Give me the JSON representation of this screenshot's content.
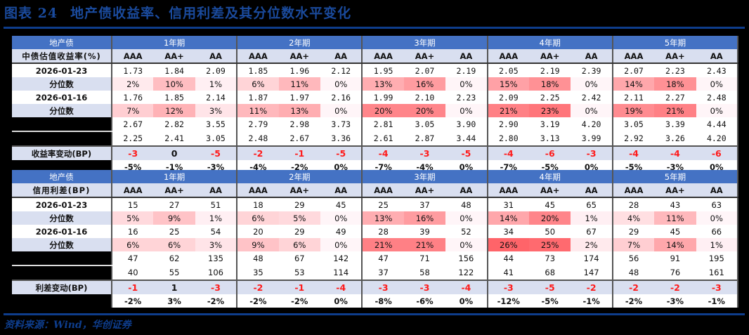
{
  "title": {
    "figure_no": "图表 24",
    "text": "地产债收益率、信用利差及其分位数水平变化"
  },
  "source": "资料来源：Wind，华创证券",
  "colors": {
    "header_blue": "#4472c4",
    "rule_blue": "#0e3d8c",
    "label_bg": "#d9dff0",
    "negative_red": "#ff1a1a"
  },
  "tables": [
    {
      "header": {
        "corner": "地产债",
        "periods": [
          "1年期",
          "2年期",
          "3年期",
          "4年期",
          "5年期"
        ]
      },
      "subheader": {
        "label": "中债估值收益率(%)",
        "ratings": [
          "AAA",
          "AA+",
          "AA",
          "AAA",
          "AA+",
          "AA",
          "AAA",
          "AA+",
          "AA",
          "AAA",
          "AA+",
          "AA",
          "AAA",
          "AA+",
          "AA"
        ]
      },
      "rows": [
        {
          "label": "2026-01-23",
          "type": "value",
          "values": [
            "1.73",
            "1.84",
            "2.09",
            "1.85",
            "1.96",
            "2.12",
            "1.95",
            "2.07",
            "2.19",
            "2.05",
            "2.19",
            "2.39",
            "2.07",
            "2.23",
            "2.43"
          ]
        },
        {
          "label": "分位数",
          "type": "pct",
          "values": [
            "2%",
            "10%",
            "1%",
            "6%",
            "11%",
            "0%",
            "13%",
            "16%",
            "0%",
            "15%",
            "18%",
            "0%",
            "14%",
            "18%",
            "0%"
          ]
        },
        {
          "label": "2026-01-16",
          "type": "value",
          "values": [
            "1.76",
            "1.85",
            "2.14",
            "1.87",
            "1.97",
            "2.16",
            "1.99",
            "2.10",
            "2.23",
            "2.09",
            "2.25",
            "2.42",
            "2.11",
            "2.27",
            "2.48"
          ]
        },
        {
          "label": "分位数",
          "type": "pct",
          "values": [
            "7%",
            "12%",
            "3%",
            "11%",
            "13%",
            "0%",
            "20%",
            "20%",
            "0%",
            "21%",
            "23%",
            "0%",
            "19%",
            "21%",
            "0%"
          ]
        },
        {
          "label": "",
          "type": "hidden",
          "values": [
            "2.67",
            "2.82",
            "3.55",
            "2.79",
            "2.98",
            "3.73",
            "2.81",
            "3.05",
            "3.90",
            "2.90",
            "3.19",
            "4.20",
            "3.05",
            "3.39",
            "4.44"
          ]
        },
        {
          "label": "",
          "type": "hidden",
          "values": [
            "2.25",
            "2.41",
            "3.05",
            "2.48",
            "2.67",
            "3.36",
            "2.61",
            "2.87",
            "3.44",
            "2.80",
            "3.13",
            "3.99",
            "2.92",
            "3.26",
            "4.20"
          ]
        },
        {
          "label": "收益率变动(BP)",
          "type": "change",
          "values": [
            "-3",
            "0",
            "-5",
            "-2",
            "-1",
            "-5",
            "-4",
            "-3",
            "-5",
            "-4",
            "-6",
            "-3",
            "-4",
            "-4",
            "-6"
          ]
        },
        {
          "label": "",
          "type": "change_pct",
          "values": [
            "-5%",
            "-1%",
            "-3%",
            "-4%",
            "-2%",
            "0%",
            "-7%",
            "-4%",
            "0%",
            "-7%",
            "-5%",
            "0%",
            "-5%",
            "-3%",
            "0%"
          ]
        }
      ]
    },
    {
      "header": {
        "corner": "地产债",
        "periods": [
          "1年期",
          "2年期",
          "3年期",
          "4年期",
          "5年期"
        ]
      },
      "subheader": {
        "label": "信用利差(BP)",
        "ratings": [
          "AAA",
          "AA+",
          "AA",
          "AAA",
          "AA+",
          "AA",
          "AAA",
          "AA+",
          "AA",
          "AAA",
          "AA+",
          "AA",
          "AAA",
          "AA+",
          "AA"
        ]
      },
      "rows": [
        {
          "label": "2026-01-23",
          "type": "value",
          "values": [
            "15",
            "27",
            "51",
            "18",
            "29",
            "45",
            "25",
            "37",
            "48",
            "31",
            "45",
            "65",
            "28",
            "43",
            "63"
          ]
        },
        {
          "label": "分位数",
          "type": "pct",
          "values": [
            "5%",
            "9%",
            "1%",
            "6%",
            "5%",
            "0%",
            "13%",
            "16%",
            "0%",
            "14%",
            "20%",
            "1%",
            "4%",
            "11%",
            "0%"
          ]
        },
        {
          "label": "2026-01-16",
          "type": "value",
          "values": [
            "16",
            "25",
            "54",
            "20",
            "29",
            "49",
            "28",
            "39",
            "52",
            "34",
            "50",
            "67",
            "29",
            "45",
            "66"
          ]
        },
        {
          "label": "分位数",
          "type": "pct",
          "values": [
            "6%",
            "6%",
            "3%",
            "9%",
            "6%",
            "0%",
            "21%",
            "21%",
            "0%",
            "26%",
            "25%",
            "2%",
            "7%",
            "14%",
            "1%"
          ]
        },
        {
          "label": "",
          "type": "hidden",
          "values": [
            "47",
            "62",
            "135",
            "48",
            "67",
            "142",
            "47",
            "71",
            "156",
            "44",
            "73",
            "174",
            "56",
            "91",
            "195"
          ]
        },
        {
          "label": "",
          "type": "hidden",
          "values": [
            "40",
            "55",
            "106",
            "35",
            "53",
            "114",
            "37",
            "58",
            "122",
            "41",
            "68",
            "147",
            "48",
            "76",
            "161"
          ]
        },
        {
          "label": "利差变动(BP)",
          "type": "change",
          "values": [
            "-1",
            "1",
            "-3",
            "-2",
            "-1",
            "-4",
            "-3",
            "-3",
            "-4",
            "-3",
            "-5",
            "-2",
            "-2",
            "-2",
            "-3"
          ]
        },
        {
          "label": "",
          "type": "change_pct",
          "values": [
            "-2%",
            "3%",
            "-2%",
            "-2%",
            "-2%",
            "0%",
            "-8%",
            "-6%",
            "0%",
            "-12%",
            "-5%",
            "-1%",
            "-2%",
            "-3%",
            "-1%"
          ]
        }
      ]
    }
  ]
}
